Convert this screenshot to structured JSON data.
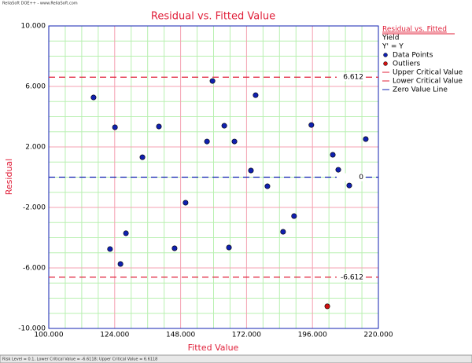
{
  "chart_data": {
    "type": "scatter",
    "title": "Residual vs. Fitted Value",
    "x_label": "Fitted Value",
    "y_label": "Residual",
    "header_text": "ReliaSoft DOE++ - www.ReliaSoft.com",
    "status_text": "Risk Level = 0.1, Lower Critical Value = -6.6118; Upper Critical Value = 6.6118",
    "legend_title": "Residual vs. Fitted",
    "legend_subtitle": [
      "Yield",
      "Y' = Y"
    ],
    "xlim": [
      100,
      220
    ],
    "ylim": [
      -10,
      10
    ],
    "xticks": [
      {
        "value": 100,
        "label": "100.000"
      },
      {
        "value": 124,
        "label": "124.000"
      },
      {
        "value": 148,
        "label": "148.000"
      },
      {
        "value": 172,
        "label": "172.000"
      },
      {
        "value": 196,
        "label": "196.000"
      },
      {
        "value": 220,
        "label": "220.000"
      }
    ],
    "yticks": [
      {
        "value": -10,
        "label": "-10.000"
      },
      {
        "value": -6,
        "label": "-6.000"
      },
      {
        "value": -2,
        "label": "-2.000"
      },
      {
        "value": 2,
        "label": "2.000"
      },
      {
        "value": 6,
        "label": "6.000"
      },
      {
        "value": 10,
        "label": "10.000"
      }
    ],
    "grid": true,
    "series": [
      {
        "name": "Data Points",
        "color": "#1020b0",
        "x": [
          116.3,
          122.3,
          124.1,
          126.1,
          128.1,
          134.1,
          140.1,
          145.8,
          149.8,
          157.6,
          159.6,
          163.9,
          165.6,
          167.6,
          173.6,
          175.3,
          179.6,
          185.3,
          189.3,
          195.6,
          203.4,
          205.4,
          209.4,
          215.4
        ],
        "values": [
          5.27,
          -4.75,
          3.3,
          -5.74,
          -3.71,
          1.32,
          3.35,
          -4.7,
          -1.69,
          2.36,
          6.36,
          3.4,
          -4.65,
          2.36,
          0.44,
          5.42,
          -0.6,
          -3.61,
          -2.57,
          3.45,
          1.48,
          0.49,
          -0.55,
          2.52
        ]
      },
      {
        "name": "Outliers",
        "color": "#d01010",
        "x": [
          201.4
        ],
        "values": [
          -8.54
        ]
      }
    ],
    "ref_lines": [
      {
        "name": "Upper Critical Value",
        "value": 6.612,
        "color": "#e0203a"
      },
      {
        "name": "Lower Critical Value",
        "value": -6.612,
        "color": "#e0203a"
      },
      {
        "name": "Zero Value Line",
        "value": 0,
        "color": "#1020b0"
      }
    ]
  }
}
